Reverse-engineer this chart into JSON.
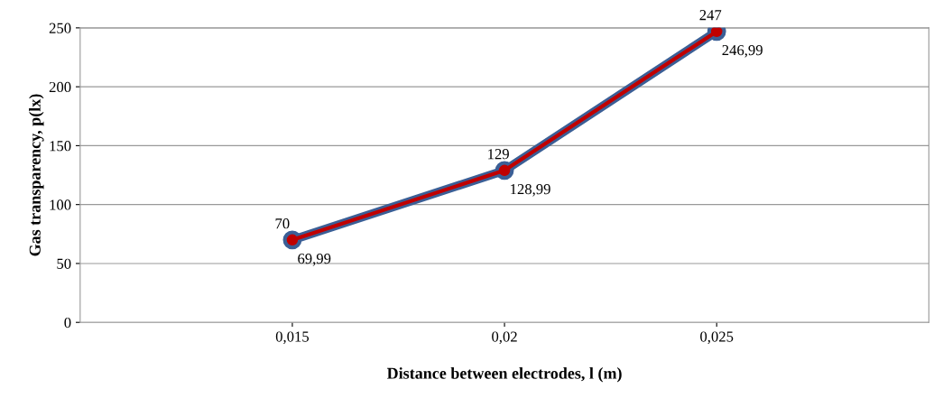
{
  "chart_data": {
    "type": "line",
    "xlabel": "Distance between electrodes, l (m)",
    "ylabel": "Gas transparency, p(lx)",
    "categories": [
      "0,015",
      "0,02",
      "0,025"
    ],
    "series": [
      {
        "color": "#3b5f96",
        "values": [
          70,
          129,
          247
        ],
        "value_labels": [
          "70",
          "129",
          "247"
        ]
      },
      {
        "color": "#c00000",
        "values": [
          69.99,
          128.99,
          246.99
        ],
        "value_labels": [
          "69,99",
          "128,99",
          "246,99"
        ]
      }
    ],
    "ylim": [
      0,
      250
    ],
    "yticks": [
      0,
      50,
      100,
      150,
      200,
      250
    ],
    "grid": "y",
    "marker": "circle",
    "line_style": "solid",
    "legend": false
  }
}
